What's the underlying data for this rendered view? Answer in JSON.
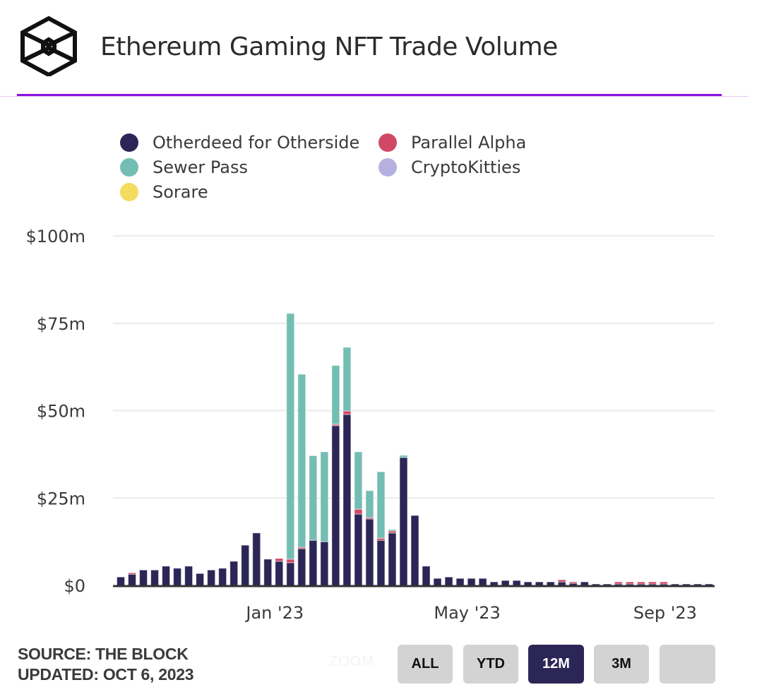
{
  "header": {
    "logo_icon": "the-block-cube-logo-icon",
    "title": "Ethereum Gaming NFT Trade Volume"
  },
  "colors": {
    "accent_rule": "#8a12dc",
    "otherdeed": "#2c2657",
    "sewer_pass": "#74bdb2",
    "sorare": "#f3dc5f",
    "parallel_alpha": "#d14766",
    "cryptokitties": "#b5b0e0",
    "active_button": "#2c2657",
    "button": "#d3d3d3"
  },
  "legend": [
    {
      "label": "Otherdeed for Otherside",
      "color": "#2c2657"
    },
    {
      "label": "Parallel Alpha",
      "color": "#d14766"
    },
    {
      "label": "Sewer Pass",
      "color": "#74bdb2"
    },
    {
      "label": "CryptoKitties",
      "color": "#b5b0e0"
    },
    {
      "label": "Sorare",
      "color": "#f3dc5f"
    }
  ],
  "chart_data": {
    "type": "bar",
    "stacked": true,
    "title": "Ethereum Gaming NFT Trade Volume",
    "xlabel": "",
    "ylabel": "",
    "ylim": [
      0,
      100
    ],
    "y_unit": "$m",
    "y_ticks": [
      {
        "value": 0,
        "label": "$0"
      },
      {
        "value": 25,
        "label": "$25m"
      },
      {
        "value": 50,
        "label": "$50m"
      },
      {
        "value": 75,
        "label": "$75m"
      },
      {
        "value": 100,
        "label": "$100m"
      }
    ],
    "x_ticks": [
      {
        "index": 13,
        "label": "Jan '23"
      },
      {
        "index": 30,
        "label": "May '23"
      },
      {
        "index": 47.5,
        "label": "Sep '23"
      }
    ],
    "grid": true,
    "legend_position": "top-left",
    "bar_count": 53,
    "series": [
      {
        "name": "Otherdeed for Otherside",
        "color": "#2c2657",
        "values": [
          2.4,
          3.2,
          4.4,
          4.4,
          5.5,
          4.9,
          5.5,
          3.4,
          4.4,
          4.9,
          6.9,
          11.5,
          15.0,
          7.5,
          6.9,
          6.5,
          10.5,
          12.9,
          12.5,
          45.7,
          48.9,
          20.4,
          19.0,
          12.9,
          15.0,
          36.6,
          20.0,
          5.5,
          2.0,
          2.4,
          2.0,
          2.0,
          2.0,
          1.0,
          1.4,
          1.4,
          1.0,
          1.0,
          1.0,
          1.0,
          0.6,
          1.0,
          0.4,
          0.4,
          0.4,
          0.4,
          0.4,
          0.4,
          0.4,
          0.4,
          0.4,
          0.4,
          0.4
        ]
      },
      {
        "name": "Parallel Alpha",
        "color": "#d14766",
        "values": [
          0,
          0.4,
          0,
          0,
          0,
          0,
          0,
          0,
          0,
          0,
          0,
          0,
          0,
          0,
          0.8,
          1.0,
          0.4,
          0,
          0,
          0.4,
          1.0,
          1.4,
          0.4,
          0.6,
          0.6,
          0,
          0,
          0,
          0,
          0,
          0,
          0,
          0,
          0,
          0,
          0,
          0,
          0,
          0,
          0.6,
          0.4,
          0,
          0,
          0,
          0.6,
          0.6,
          0.6,
          0.6,
          0.6,
          0,
          0,
          0,
          0
        ]
      },
      {
        "name": "Sewer Pass",
        "color": "#74bdb2",
        "values": [
          0,
          0,
          0,
          0,
          0,
          0,
          0,
          0,
          0,
          0,
          0,
          0,
          0,
          0,
          0,
          70.3,
          49.5,
          24.2,
          25.7,
          16.8,
          18.2,
          16.4,
          7.7,
          19.0,
          0.4,
          0.6,
          0,
          0,
          0,
          0,
          0,
          0,
          0,
          0,
          0,
          0,
          0,
          0,
          0,
          0,
          0,
          0,
          0,
          0,
          0,
          0,
          0,
          0,
          0,
          0,
          0,
          0,
          0
        ]
      },
      {
        "name": "CryptoKitties",
        "color": "#b5b0e0",
        "values": [
          0,
          0,
          0,
          0,
          0,
          0,
          0,
          0,
          0,
          0,
          0,
          0,
          0,
          0,
          0,
          0,
          0,
          0,
          0,
          0,
          0,
          0,
          0,
          0,
          0,
          0,
          0,
          0,
          0,
          0,
          0,
          0,
          0,
          0,
          0,
          0,
          0,
          0,
          0,
          0,
          0,
          0,
          0,
          0,
          0,
          0,
          0,
          0,
          0,
          0,
          0,
          0,
          0
        ]
      },
      {
        "name": "Sorare",
        "color": "#f3dc5f",
        "values": [
          0,
          0,
          0,
          0,
          0,
          0,
          0,
          0,
          0,
          0,
          0,
          0,
          0,
          0,
          0,
          0,
          0,
          0,
          0,
          0,
          0,
          0,
          0,
          0,
          0,
          0,
          0,
          0,
          0,
          0,
          0,
          0,
          0,
          0,
          0,
          0,
          0,
          0,
          0,
          0,
          0,
          0,
          0,
          0,
          0,
          0,
          0,
          0,
          0,
          0,
          0,
          0,
          0
        ]
      }
    ]
  },
  "footer": {
    "source": "SOURCE: THE BLOCK",
    "updated": "UPDATED: OCT 6, 2023",
    "zoom_label": "ZOOM",
    "range_buttons": [
      {
        "label": "ALL",
        "active": false
      },
      {
        "label": "YTD",
        "active": false
      },
      {
        "label": "12M",
        "active": true
      },
      {
        "label": "3M",
        "active": false
      },
      {
        "label": "",
        "active": false
      }
    ]
  }
}
